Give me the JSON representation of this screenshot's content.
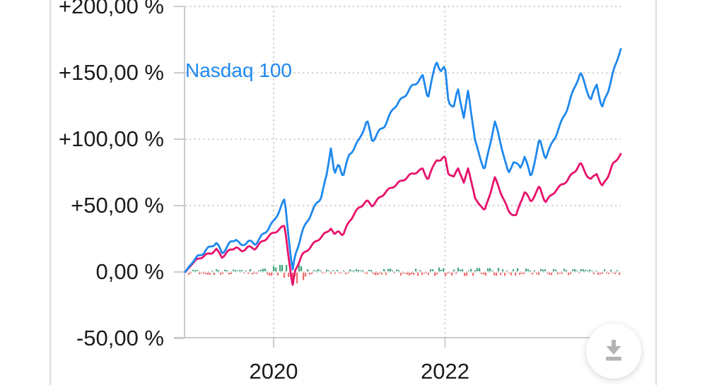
{
  "page": {
    "background": "#ffffff",
    "divider_color": "#d8dbde"
  },
  "chart_data": {
    "type": "line",
    "title": "",
    "grid": {
      "style": "dotted",
      "color": "#cfcfcf",
      "axis_color": "#c9cccf"
    },
    "legend_position": "inline-left",
    "x_axis": {
      "range": [
        2018.97,
        2024.05
      ],
      "ticks": [
        {
          "label": "2020",
          "value": 2020
        },
        {
          "label": "2022",
          "value": 2022
        }
      ]
    },
    "y_axis": {
      "unit": "%",
      "range": [
        -50,
        200
      ],
      "baseline_value": -50,
      "ticks": [
        {
          "label": "+200,00 %",
          "value": 200
        },
        {
          "label": "+150,00 %",
          "value": 150
        },
        {
          "label": "+100,00 %",
          "value": 100
        },
        {
          "label": "+50,00 %",
          "value": 50
        },
        {
          "label": "0,00 %",
          "value": 0
        },
        {
          "label": "-50,00 %",
          "value": -50
        }
      ]
    },
    "series": [
      {
        "name": "Nasdaq 100",
        "color": "#1e88ee",
        "points": [
          [
            2018.97,
            0
          ],
          [
            2019.05,
            7
          ],
          [
            2019.15,
            13
          ],
          [
            2019.28,
            21
          ],
          [
            2019.33,
            23
          ],
          [
            2019.4,
            15
          ],
          [
            2019.5,
            22
          ],
          [
            2019.56,
            25
          ],
          [
            2019.62,
            19
          ],
          [
            2019.7,
            24
          ],
          [
            2019.78,
            22
          ],
          [
            2019.87,
            28
          ],
          [
            2020.0,
            37
          ],
          [
            2020.07,
            46
          ],
          [
            2020.13,
            54
          ],
          [
            2020.22,
            0
          ],
          [
            2020.25,
            12
          ],
          [
            2020.33,
            30
          ],
          [
            2020.45,
            45
          ],
          [
            2020.55,
            55
          ],
          [
            2020.62,
            72
          ],
          [
            2020.67,
            95
          ],
          [
            2020.71,
            73
          ],
          [
            2020.76,
            82
          ],
          [
            2020.81,
            73
          ],
          [
            2020.88,
            88
          ],
          [
            2021.0,
            99
          ],
          [
            2021.09,
            114
          ],
          [
            2021.15,
            99
          ],
          [
            2021.22,
            106
          ],
          [
            2021.3,
            112
          ],
          [
            2021.4,
            124
          ],
          [
            2021.5,
            130
          ],
          [
            2021.62,
            140
          ],
          [
            2021.74,
            148
          ],
          [
            2021.8,
            132
          ],
          [
            2021.9,
            159
          ],
          [
            2021.95,
            150
          ],
          [
            2022.0,
            153
          ],
          [
            2022.04,
            128
          ],
          [
            2022.1,
            122
          ],
          [
            2022.15,
            139
          ],
          [
            2022.22,
            115
          ],
          [
            2022.27,
            138
          ],
          [
            2022.35,
            98
          ],
          [
            2022.42,
            84
          ],
          [
            2022.46,
            75
          ],
          [
            2022.58,
            113
          ],
          [
            2022.68,
            90
          ],
          [
            2022.74,
            74
          ],
          [
            2022.8,
            85
          ],
          [
            2022.88,
            78
          ],
          [
            2022.93,
            88
          ],
          [
            2023.0,
            70
          ],
          [
            2023.1,
            100
          ],
          [
            2023.17,
            87
          ],
          [
            2023.3,
            105
          ],
          [
            2023.42,
            122
          ],
          [
            2023.52,
            140
          ],
          [
            2023.58,
            150
          ],
          [
            2023.65,
            138
          ],
          [
            2023.7,
            130
          ],
          [
            2023.77,
            142
          ],
          [
            2023.83,
            123
          ],
          [
            2023.9,
            135
          ],
          [
            2023.95,
            147
          ],
          [
            2024.0,
            157
          ],
          [
            2024.05,
            168
          ]
        ]
      },
      {
        "name": "",
        "color": "#e8116b",
        "points": [
          [
            2018.97,
            0
          ],
          [
            2019.05,
            6
          ],
          [
            2019.15,
            11
          ],
          [
            2019.28,
            15
          ],
          [
            2019.33,
            17
          ],
          [
            2019.4,
            11
          ],
          [
            2019.5,
            16
          ],
          [
            2019.56,
            18
          ],
          [
            2019.62,
            15
          ],
          [
            2019.7,
            19
          ],
          [
            2019.78,
            18
          ],
          [
            2019.87,
            23
          ],
          [
            2020.0,
            29
          ],
          [
            2020.07,
            32
          ],
          [
            2020.13,
            35
          ],
          [
            2020.22,
            -11
          ],
          [
            2020.25,
            2
          ],
          [
            2020.33,
            13
          ],
          [
            2020.45,
            20
          ],
          [
            2020.55,
            26
          ],
          [
            2020.62,
            30
          ],
          [
            2020.67,
            34
          ],
          [
            2020.71,
            28
          ],
          [
            2020.76,
            32
          ],
          [
            2020.81,
            28
          ],
          [
            2020.88,
            38
          ],
          [
            2021.0,
            48
          ],
          [
            2021.09,
            53
          ],
          [
            2021.15,
            50
          ],
          [
            2021.22,
            55
          ],
          [
            2021.3,
            60
          ],
          [
            2021.4,
            64
          ],
          [
            2021.5,
            68
          ],
          [
            2021.62,
            74
          ],
          [
            2021.74,
            78
          ],
          [
            2021.8,
            70
          ],
          [
            2021.9,
            85
          ],
          [
            2021.95,
            83
          ],
          [
            2022.0,
            87
          ],
          [
            2022.04,
            74
          ],
          [
            2022.1,
            71
          ],
          [
            2022.15,
            80
          ],
          [
            2022.22,
            67
          ],
          [
            2022.27,
            80
          ],
          [
            2022.35,
            55
          ],
          [
            2022.42,
            50
          ],
          [
            2022.46,
            45
          ],
          [
            2022.58,
            71
          ],
          [
            2022.68,
            56
          ],
          [
            2022.74,
            46
          ],
          [
            2022.83,
            42
          ],
          [
            2022.88,
            52
          ],
          [
            2022.93,
            60
          ],
          [
            2023.0,
            52
          ],
          [
            2023.1,
            64
          ],
          [
            2023.17,
            53
          ],
          [
            2023.3,
            62
          ],
          [
            2023.42,
            68
          ],
          [
            2023.52,
            76
          ],
          [
            2023.58,
            82
          ],
          [
            2023.65,
            74
          ],
          [
            2023.7,
            70
          ],
          [
            2023.77,
            75
          ],
          [
            2023.83,
            64
          ],
          [
            2023.9,
            72
          ],
          [
            2023.95,
            80
          ],
          [
            2024.0,
            84
          ],
          [
            2024.05,
            89
          ]
        ]
      }
    ],
    "change_bars": {
      "description": "tiny daily-change bars hugging the 0% line",
      "up_color": "#3fa57a",
      "down_color": "#f26c6c",
      "min_pct": 0.3,
      "max_pct": 1.7,
      "spike_boost": 5.5,
      "spike_center_year": 2020.2
    }
  },
  "download_button": {
    "icon": "download-icon"
  }
}
